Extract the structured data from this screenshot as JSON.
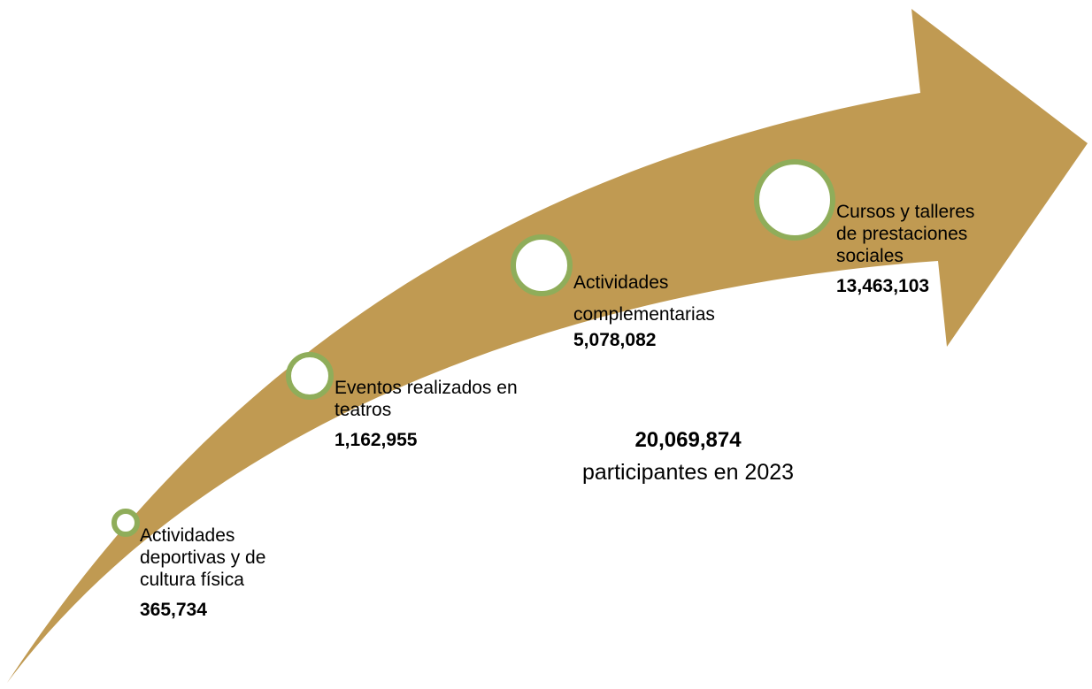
{
  "colors": {
    "arrow": "#c09a52",
    "ring": "#8fad5a",
    "circle_fill": "#ffffff"
  },
  "stages": [
    {
      "label": "Actividades deportivas y de cultura física",
      "value": "365,734"
    },
    {
      "label": "Eventos realizados en teatros",
      "value": "1,162,955"
    },
    {
      "label": "Actividades complementarias",
      "value": "5,078,082"
    },
    {
      "label": "Cursos y talleres de prestaciones sociales",
      "value": "13,463,103"
    }
  ],
  "total": {
    "value": "20,069,874",
    "label": "participantes en 2023"
  }
}
